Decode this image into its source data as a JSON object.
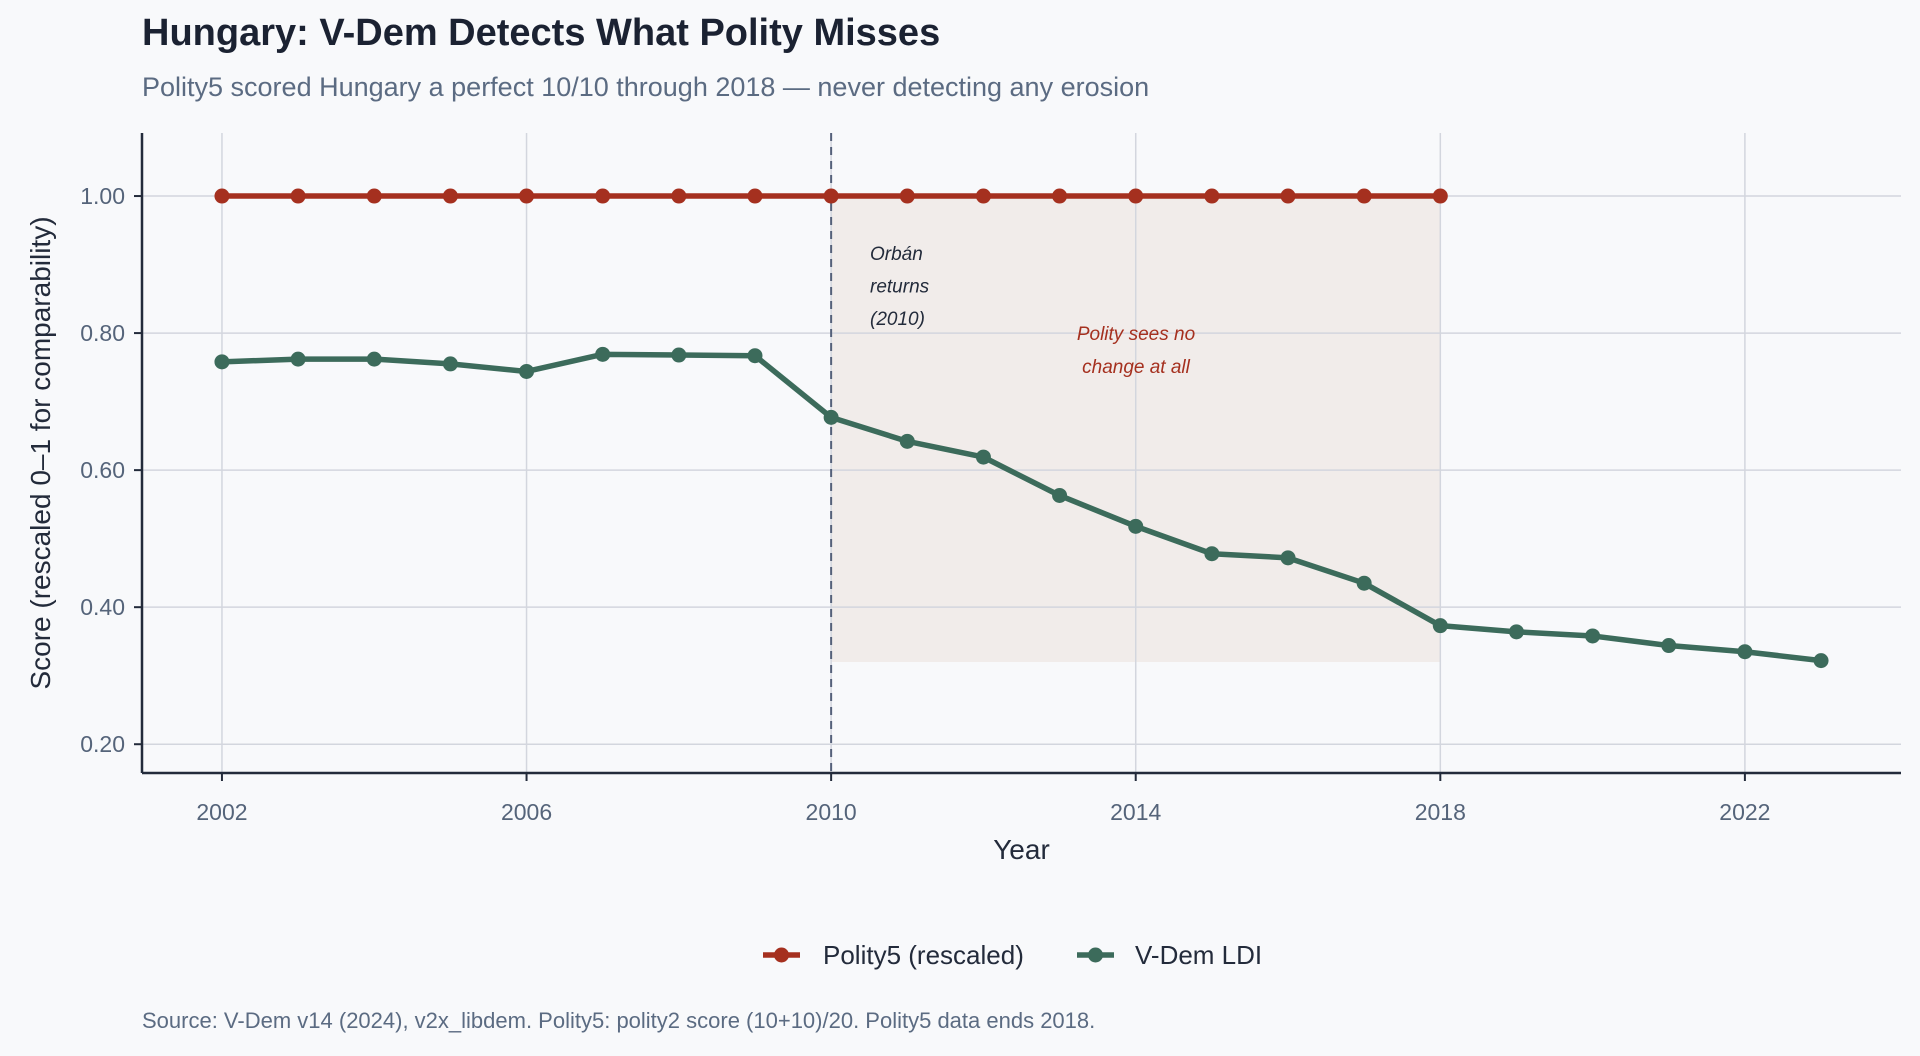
{
  "header": {
    "title": "Hungary: V-Dem Detects What Polity Misses",
    "subtitle": "Polity5 scored Hungary a perfect 10/10 through 2018 — never detecting any erosion"
  },
  "footer": {
    "source": "Source: V-Dem v14 (2024), v2x_libdem. Polity5: polity2 score (10+10)/20. Polity5 data ends 2018."
  },
  "colors": {
    "background": "#f8f9fb",
    "polity": "#a5301f",
    "vdem": "#3c6b5b",
    "shade": "#f1ecea",
    "grid": "#d3d6de",
    "axis": "#232b3b",
    "dashed_line": "#55617a"
  },
  "chart_data": {
    "type": "line",
    "title": "Hungary: V-Dem Detects What Polity Misses",
    "subtitle": "Polity5 scored Hungary a perfect 10/10 through 2018 — never detecting any erosion",
    "xlabel": "Year",
    "ylabel": "Score (rescaled 0–1 for comparability)",
    "xlim": [
      2000.95,
      2024.05
    ],
    "ylim": [
      0.158,
      1.092
    ],
    "xticks": [
      2002,
      2006,
      2010,
      2014,
      2018,
      2022
    ],
    "xtick_labels": [
      "2002",
      "2006",
      "2010",
      "2014",
      "2018",
      "2022"
    ],
    "yticks": [
      0.2,
      0.4,
      0.6,
      0.8,
      1.0
    ],
    "ytick_labels": [
      "0.20",
      "0.40",
      "0.60",
      "0.80",
      "1.00"
    ],
    "grid": true,
    "legend_position": "bottom-center",
    "series": [
      {
        "name": "Polity5 (rescaled)",
        "color": "#a5301f",
        "x": [
          2002,
          2003,
          2004,
          2005,
          2006,
          2007,
          2008,
          2009,
          2010,
          2011,
          2012,
          2013,
          2014,
          2015,
          2016,
          2017,
          2018
        ],
        "values": [
          1.0,
          1.0,
          1.0,
          1.0,
          1.0,
          1.0,
          1.0,
          1.0,
          1.0,
          1.0,
          1.0,
          1.0,
          1.0,
          1.0,
          1.0,
          1.0,
          1.0
        ]
      },
      {
        "name": "V-Dem LDI",
        "color": "#3c6b5b",
        "x": [
          2002,
          2003,
          2004,
          2005,
          2006,
          2007,
          2008,
          2009,
          2010,
          2011,
          2012,
          2013,
          2014,
          2015,
          2016,
          2017,
          2018,
          2019,
          2020,
          2021,
          2022,
          2023
        ],
        "values": [
          0.758,
          0.762,
          0.762,
          0.755,
          0.744,
          0.769,
          0.768,
          0.767,
          0.677,
          0.642,
          0.619,
          0.563,
          0.518,
          0.478,
          0.472,
          0.435,
          0.373,
          0.364,
          0.358,
          0.344,
          0.335,
          0.322
        ]
      }
    ],
    "shaded_region": {
      "x": [
        2010,
        2018
      ],
      "y": [
        0.32,
        1.0
      ]
    },
    "vertical_line": {
      "x": 2010,
      "style": "dashed"
    },
    "annotations": [
      {
        "text_lines": [
          "Orbán",
          "returns",
          "(2010)"
        ],
        "x": 2010.5,
        "y": 0.87,
        "color": "#232b3b",
        "align": "left"
      },
      {
        "text_lines": [
          "Polity sees no",
          "change at all"
        ],
        "x": 2014,
        "y": 0.77,
        "color": "#a5301f",
        "align": "center"
      }
    ]
  }
}
